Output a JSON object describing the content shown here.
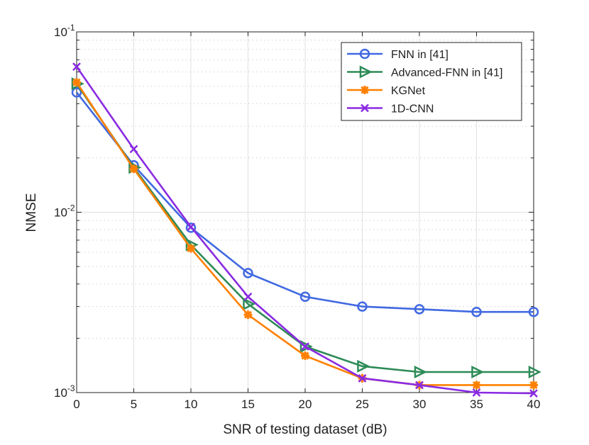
{
  "chart_data": {
    "type": "line",
    "xlabel": "SNR of testing dataset (dB)",
    "ylabel": "NMSE",
    "x": [
      0,
      5,
      10,
      15,
      20,
      25,
      30,
      35,
      40
    ],
    "xlim": [
      0,
      40
    ],
    "ylim": [
      0.001,
      0.1
    ],
    "yscale": "log",
    "grid": true,
    "legend_position": "top-right",
    "xticks": [
      "0",
      "5",
      "10",
      "15",
      "20",
      "25",
      "30",
      "35",
      "40"
    ],
    "yticks": [
      {
        "base": "10",
        "exp": "-3",
        "value": 0.001
      },
      {
        "base": "10",
        "exp": "-2",
        "value": 0.01
      },
      {
        "base": "10",
        "exp": "-1",
        "value": 0.1
      }
    ],
    "series": [
      {
        "name": "FNN in [41]",
        "color": "#4169e1",
        "marker": "circle",
        "values": [
          0.0462,
          0.0182,
          0.0082,
          0.0046,
          0.0034,
          0.003,
          0.0029,
          0.0028,
          0.0028
        ]
      },
      {
        "name": "Advanced-FNN in [41]",
        "color": "#2e8b57",
        "marker": "triangle-right",
        "values": [
          0.0516,
          0.0177,
          0.0066,
          0.0031,
          0.0018,
          0.0014,
          0.0013,
          0.0013,
          0.0013
        ]
      },
      {
        "name": "KGNet",
        "color": "#ff8000",
        "marker": "asterisk",
        "values": [
          0.0525,
          0.0174,
          0.0063,
          0.0027,
          0.0016,
          0.0012,
          0.0011,
          0.0011,
          0.0011
        ]
      },
      {
        "name": "1D-CNN",
        "color": "#8a2be2",
        "marker": "x",
        "values": [
          0.0641,
          0.0224,
          0.0083,
          0.0034,
          0.0018,
          0.0012,
          0.0011,
          0.001,
          0.00099
        ]
      }
    ]
  }
}
